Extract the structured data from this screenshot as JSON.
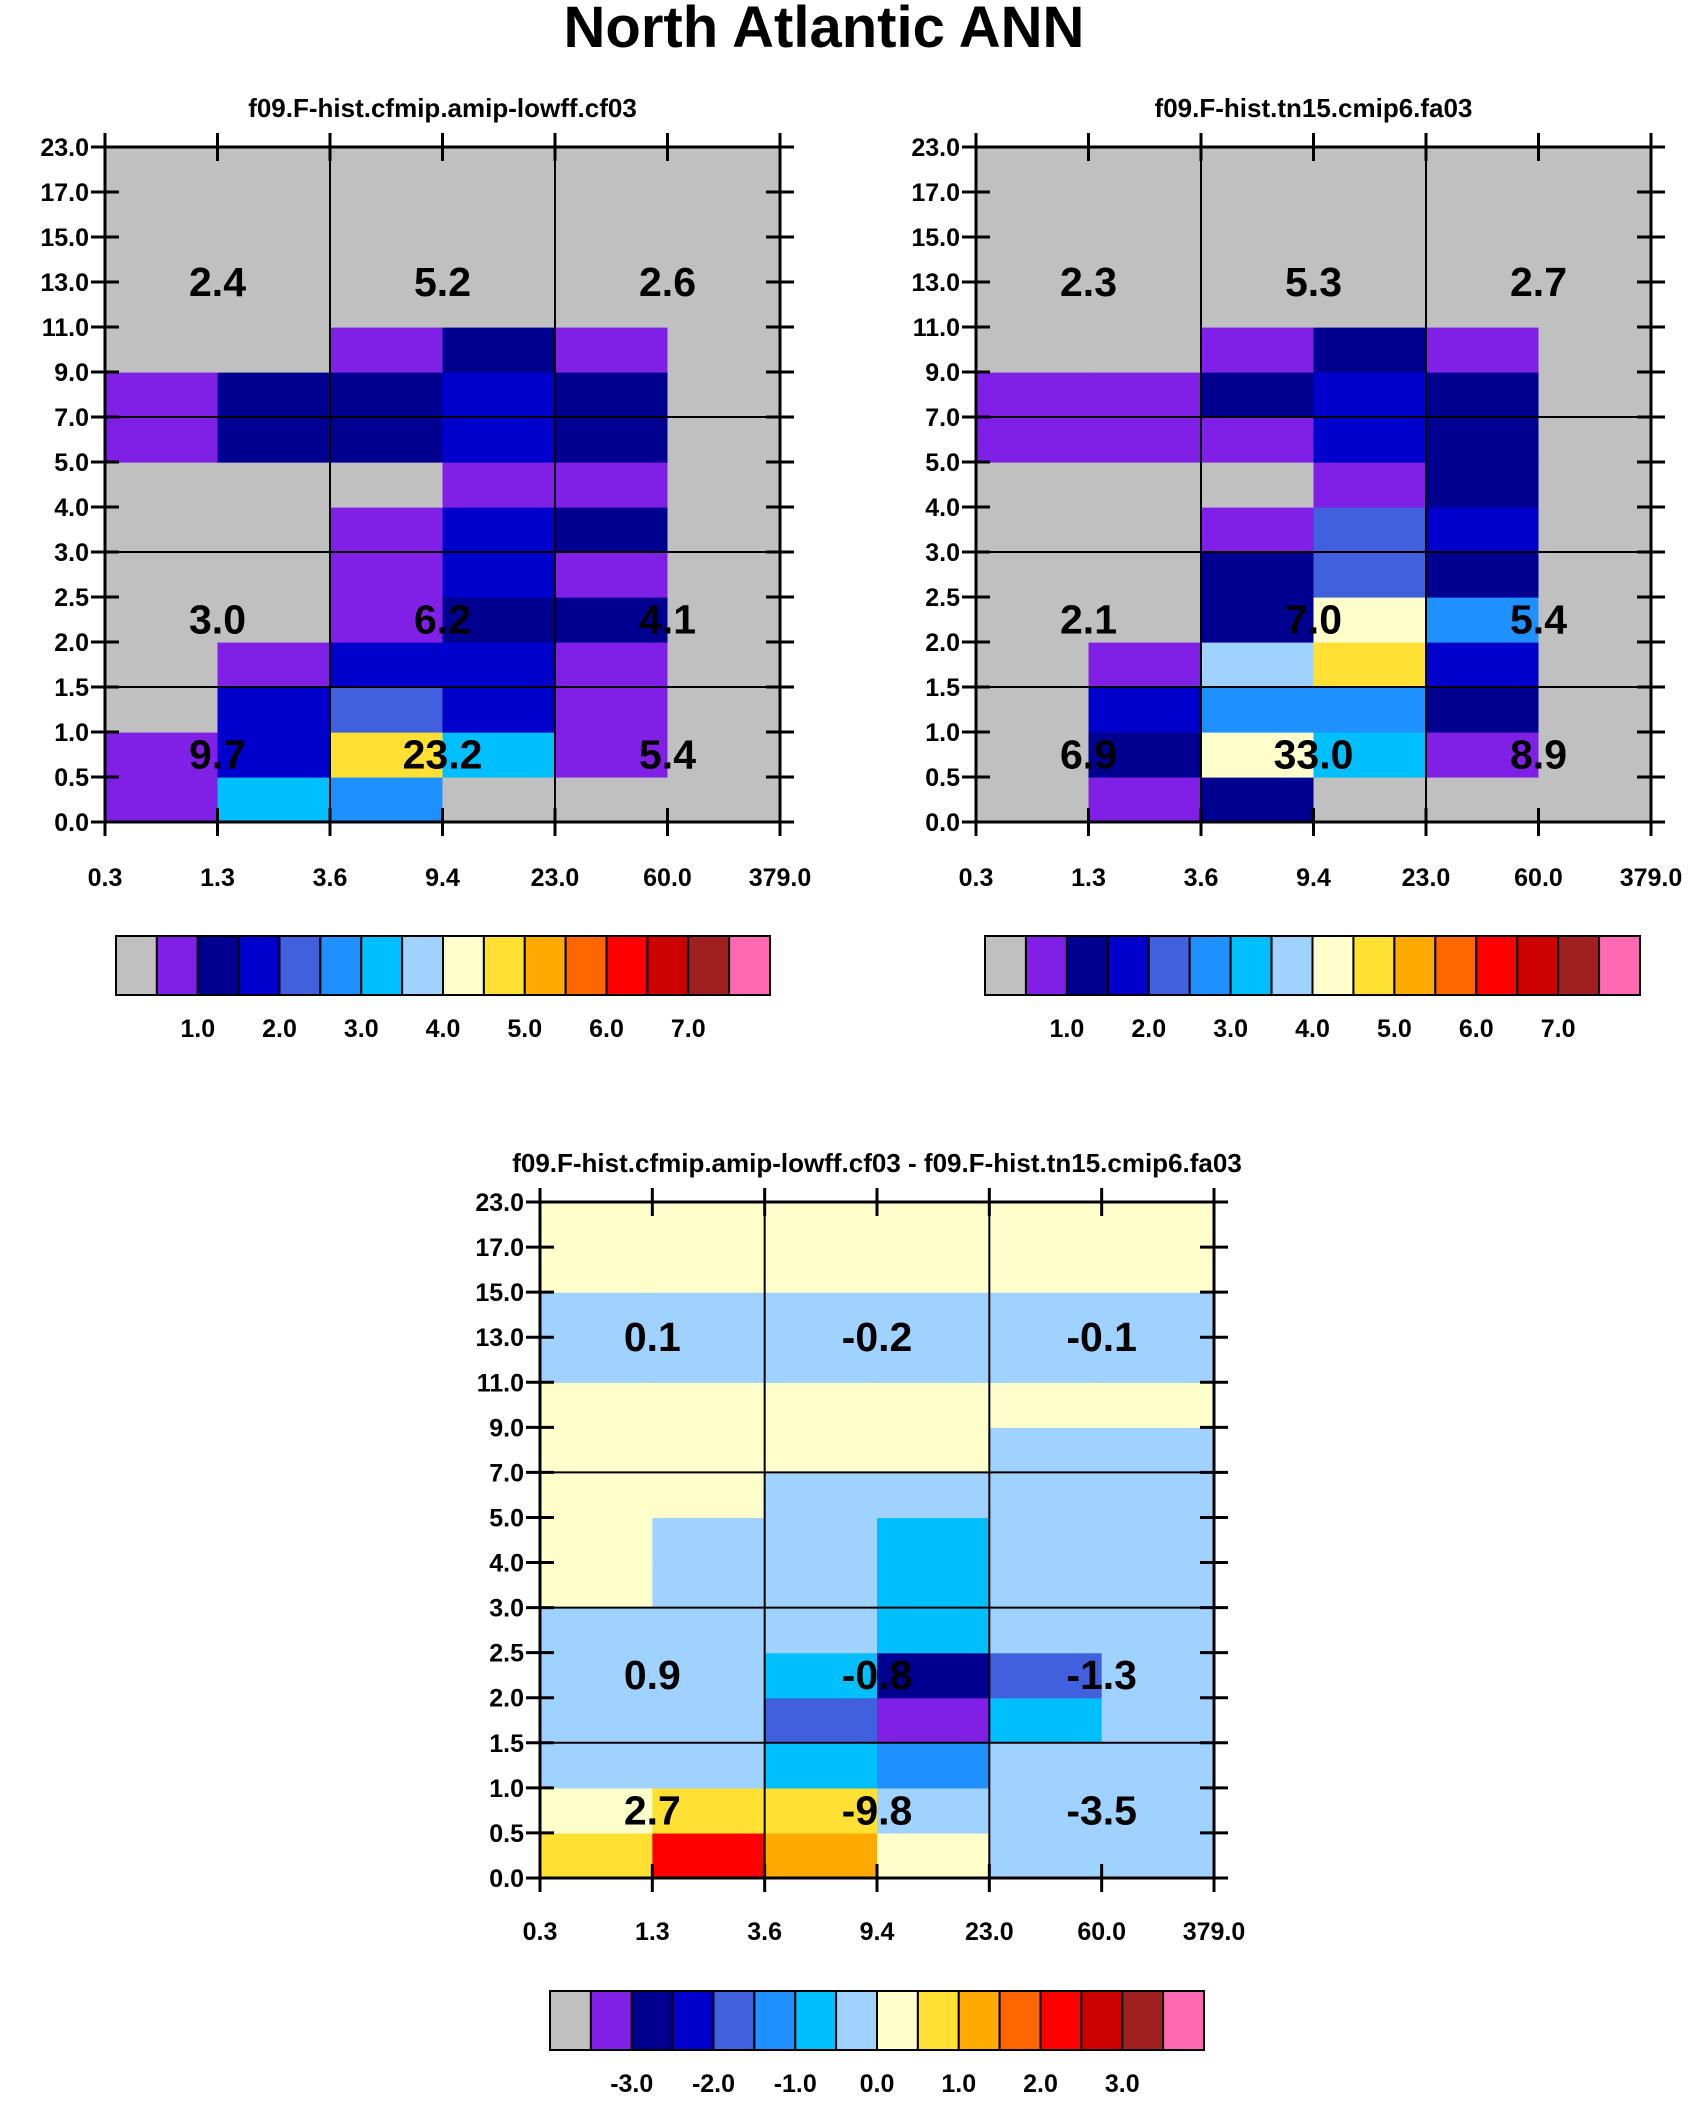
{
  "title": "North Atlantic ANN",
  "palette": [
    "#c0c0c0",
    "#8020e6",
    "#000090",
    "#0000cc",
    "#4060dd",
    "#1e90ff",
    "#00bfff",
    "#a0d2ff",
    "#ffffcc",
    "#ffe033",
    "#ffaa00",
    "#ff6600",
    "#ff0000",
    "#cc0000",
    "#a02020",
    "#ff69b4"
  ],
  "panels": [
    {
      "title": "f09.F-hist.cfmip.amip-lowff.cf03",
      "y_tick_labels": [
        "0.0",
        "0.5",
        "1.0",
        "1.5",
        "2.0",
        "2.5",
        "3.0",
        "4.0",
        "5.0",
        "7.0",
        "9.0",
        "11.0",
        "13.0",
        "15.0",
        "17.0",
        "23.0"
      ],
      "x_tick_labels": [
        "0.3",
        "1.3",
        "3.6",
        "9.4",
        "23.0",
        "60.0",
        "379.0"
      ],
      "y_grid_at_bin": [
        3,
        6,
        9
      ],
      "x_grid_at_bin": [
        2,
        4
      ],
      "grid_color_index": [
        [
          1,
          6,
          5,
          0,
          0,
          0
        ],
        [
          1,
          3,
          9,
          6,
          1,
          0
        ],
        [
          0,
          3,
          4,
          3,
          1,
          0
        ],
        [
          0,
          1,
          3,
          3,
          1,
          0
        ],
        [
          0,
          0,
          1,
          2,
          2,
          0
        ],
        [
          0,
          0,
          1,
          3,
          1,
          0
        ],
        [
          0,
          0,
          1,
          3,
          2,
          0
        ],
        [
          0,
          0,
          0,
          1,
          1,
          0
        ],
        [
          1,
          2,
          2,
          3,
          2,
          0
        ],
        [
          1,
          2,
          2,
          3,
          2,
          0
        ],
        [
          0,
          0,
          1,
          2,
          1,
          0
        ],
        [
          0,
          0,
          0,
          0,
          0,
          0
        ],
        [
          0,
          0,
          0,
          0,
          0,
          0
        ],
        [
          0,
          0,
          0,
          0,
          0,
          0
        ],
        [
          0,
          0,
          0,
          0,
          0,
          0
        ]
      ],
      "box_values": [
        [
          "9.7",
          "23.2",
          "5.4"
        ],
        [
          "3.0",
          "6.2",
          "4.1"
        ],
        [
          "2.4",
          "5.2",
          "2.6"
        ]
      ],
      "colorbar_labels": [
        "1.0",
        "2.0",
        "3.0",
        "4.0",
        "5.0",
        "6.0",
        "7.0"
      ]
    },
    {
      "title": "f09.F-hist.tn15.cmip6.fa03",
      "y_tick_labels": [
        "0.0",
        "0.5",
        "1.0",
        "1.5",
        "2.0",
        "2.5",
        "3.0",
        "4.0",
        "5.0",
        "7.0",
        "9.0",
        "11.0",
        "13.0",
        "15.0",
        "17.0",
        "23.0"
      ],
      "x_tick_labels": [
        "0.3",
        "1.3",
        "3.6",
        "9.4",
        "23.0",
        "60.0",
        "379.0"
      ],
      "y_grid_at_bin": [
        3,
        6,
        9
      ],
      "x_grid_at_bin": [
        2,
        4
      ],
      "grid_color_index": [
        [
          0,
          1,
          2,
          0,
          0,
          0
        ],
        [
          0,
          2,
          8,
          6,
          1,
          0
        ],
        [
          0,
          3,
          5,
          5,
          2,
          0
        ],
        [
          0,
          1,
          7,
          9,
          3,
          0
        ],
        [
          0,
          0,
          2,
          8,
          5,
          0
        ],
        [
          0,
          0,
          2,
          4,
          2,
          0
        ],
        [
          0,
          0,
          1,
          4,
          3,
          0
        ],
        [
          0,
          0,
          0,
          1,
          2,
          0
        ],
        [
          1,
          1,
          1,
          3,
          2,
          0
        ],
        [
          1,
          1,
          2,
          3,
          2,
          0
        ],
        [
          0,
          0,
          1,
          2,
          1,
          0
        ],
        [
          0,
          0,
          0,
          0,
          0,
          0
        ],
        [
          0,
          0,
          0,
          0,
          0,
          0
        ],
        [
          0,
          0,
          0,
          0,
          0,
          0
        ],
        [
          0,
          0,
          0,
          0,
          0,
          0
        ]
      ],
      "box_values": [
        [
          "6.9",
          "33.0",
          "8.9"
        ],
        [
          "2.1",
          "7.0",
          "5.4"
        ],
        [
          "2.3",
          "5.3",
          "2.7"
        ]
      ],
      "colorbar_labels": [
        "1.0",
        "2.0",
        "3.0",
        "4.0",
        "5.0",
        "6.0",
        "7.0"
      ]
    },
    {
      "title": "f09.F-hist.cfmip.amip-lowff.cf03 - f09.F-hist.tn15.cmip6.fa03",
      "y_tick_labels": [
        "0.0",
        "0.5",
        "1.0",
        "1.5",
        "2.0",
        "2.5",
        "3.0",
        "4.0",
        "5.0",
        "7.0",
        "9.0",
        "11.0",
        "13.0",
        "15.0",
        "17.0",
        "23.0"
      ],
      "x_tick_labels": [
        "0.3",
        "1.3",
        "3.6",
        "9.4",
        "23.0",
        "60.0",
        "379.0"
      ],
      "y_grid_at_bin": [
        3,
        6,
        9
      ],
      "x_grid_at_bin": [
        2,
        4
      ],
      "grid_color_index": [
        [
          9,
          12,
          10,
          8,
          7,
          7
        ],
        [
          8,
          9,
          9,
          7,
          7,
          7
        ],
        [
          7,
          7,
          6,
          5,
          7,
          7
        ],
        [
          7,
          7,
          4,
          1,
          6,
          7
        ],
        [
          7,
          7,
          6,
          2,
          4,
          7
        ],
        [
          7,
          7,
          7,
          6,
          7,
          7
        ],
        [
          8,
          7,
          7,
          6,
          7,
          7
        ],
        [
          8,
          7,
          7,
          6,
          7,
          7
        ],
        [
          8,
          8,
          7,
          7,
          7,
          7
        ],
        [
          8,
          8,
          8,
          8,
          7,
          7
        ],
        [
          8,
          8,
          8,
          8,
          8,
          8
        ],
        [
          7,
          7,
          7,
          7,
          7,
          7
        ],
        [
          7,
          7,
          7,
          7,
          7,
          7
        ],
        [
          8,
          8,
          8,
          8,
          8,
          8
        ],
        [
          8,
          8,
          8,
          8,
          8,
          8
        ]
      ],
      "box_values": [
        [
          "2.7",
          "-9.8",
          "-3.5"
        ],
        [
          "0.9",
          "-0.8",
          "-1.3"
        ],
        [
          "0.1",
          "-0.2",
          "-0.1"
        ]
      ],
      "colorbar_labels": [
        "-3.0",
        "-2.0",
        "-1.0",
        "0.0",
        "1.0",
        "2.0",
        "3.0"
      ]
    }
  ]
}
